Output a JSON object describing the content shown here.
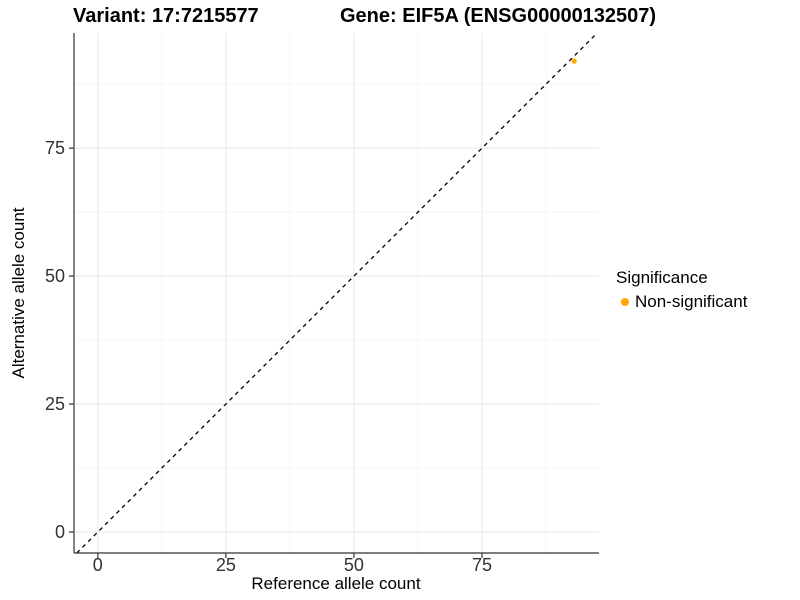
{
  "chart_data": {
    "type": "scatter",
    "titles": {
      "variant": "Variant: 17:7215577",
      "gene": "Gene: EIF5A (ENSG00000132507)"
    },
    "xlabel": "Reference allele count",
    "ylabel": "Alternative allele count",
    "xlim": [
      -4.65,
      97.85
    ],
    "ylim": [
      -4.1,
      97.5
    ],
    "x_ticks": [
      0,
      25,
      50,
      75
    ],
    "y_ticks": [
      0,
      25,
      50,
      75
    ],
    "minor_grid_interval": 12.5,
    "grid": "major+minor",
    "series": [
      {
        "name": "Non-significant",
        "color": "#FFA500",
        "points": [
          {
            "x": 93,
            "y": 92
          }
        ]
      }
    ],
    "reference_line": {
      "kind": "identity",
      "style": "dashed",
      "color": "#000000"
    },
    "legend": {
      "title": "Significance",
      "position": "right",
      "entries": [
        {
          "label": "Non-significant",
          "color": "#FFA500"
        }
      ]
    },
    "style_colors": {
      "background": "#FFFFFF",
      "grid_major": "#EBEBEB",
      "grid_minor": "#F4F4F4",
      "axis_line": "#333333",
      "tick_label": "#333333"
    }
  }
}
